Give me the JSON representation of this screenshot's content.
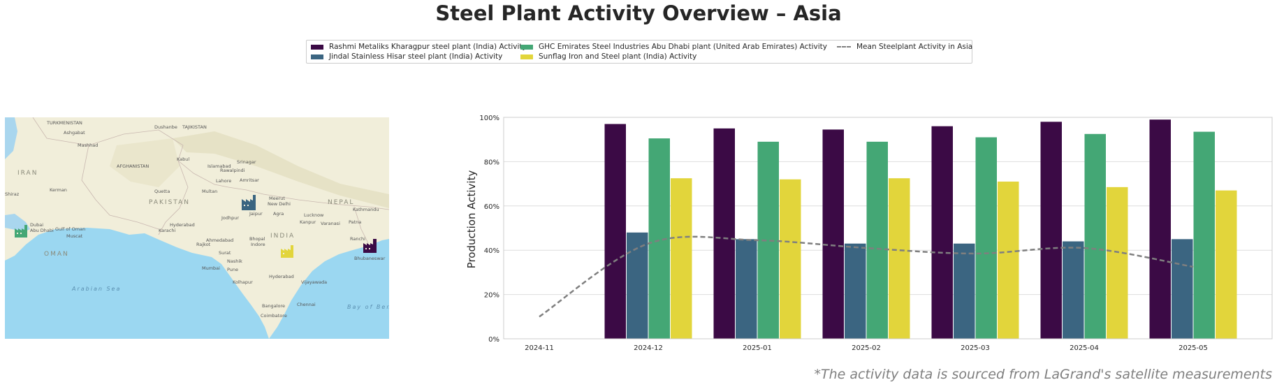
{
  "title": "Steel Plant Activity Overview – Asia",
  "source_note": "*The activity data is sourced from LaGrand's satellite measurements",
  "colors": {
    "series": [
      "#3b0a45",
      "#3b6581",
      "#44a775",
      "#e2d53b"
    ],
    "mean": "#7f7f7f",
    "grid": "#dddddd",
    "axis_text": "#262626"
  },
  "map": {
    "labels": {
      "turkmenistan": "TURKMENISTAN",
      "ashgabat": "Ashgabat",
      "mashhad": "Mashhad",
      "dushanbe": "Dushanbe",
      "tajikistan": "TAJIKISTAN",
      "iran": "IRAN",
      "afghanistan": "AFGHANISTAN",
      "kabul": "Kabul",
      "islamabad": "Islamabad",
      "srinagar": "Srinagar",
      "rawalpindi": "Rawalpindi",
      "lahore": "Lahore",
      "amritsar": "Amritsar",
      "kerman": "Kerman",
      "quetta": "Quetta",
      "multan": "Multan",
      "pakistan": "PAKISTAN",
      "shiraz": "Shiraz",
      "dubai": "Dubai",
      "abu_dhabi": "Abu Dhabi",
      "muscat": "Muscat",
      "oman": "OMAN",
      "gulf_of_oman": "Gulf of Oman",
      "karachi": "Karachi",
      "hyderabad_pk": "Hyderabad",
      "meerut": "Meerut",
      "new_delhi": "New Delhi",
      "jaipur": "Jaipur",
      "agra": "Agra",
      "lucknow": "Lucknow",
      "kanpur": "Kanpur",
      "varanasi": "Varanasi",
      "patna": "Patna",
      "nepal": "NEPAL",
      "kathmandu": "Kathmandu",
      "jodhpur": "Jodhpur",
      "ahmedabad": "Ahmedabad",
      "bhopal": "Bhopal",
      "indore": "Indore",
      "india": "INDIA",
      "rajkot": "Rajkot",
      "surat": "Surat",
      "nashik": "Nashik",
      "mumbai": "Mumbai",
      "pune": "Pune",
      "ranchi": "Ranchi",
      "bhubaneswar": "Bhubaneswar",
      "hyderabad_in": "Hyderabad",
      "vijayawada": "Vijayawada",
      "kolhapur": "Kolhapur",
      "arabian_sea": "Arabian Sea",
      "bangalore": "Bangalore",
      "chennai": "Chennai",
      "coimbatore": "Coimbatore",
      "bay_of_bengal": "Bay of Ben"
    },
    "plant_icons": [
      "factory-icon",
      "factory-icon",
      "factory-icon",
      "factory-icon"
    ]
  },
  "chart_data": {
    "type": "bar",
    "title": "",
    "xlabel": "",
    "ylabel": "Production Activity",
    "ylim": [
      0,
      100
    ],
    "yticks": [
      0,
      20,
      40,
      60,
      80,
      100
    ],
    "ytick_labels": [
      "0%",
      "20%",
      "40%",
      "60%",
      "80%",
      "100%"
    ],
    "categories": [
      "2024-11",
      "2024-12",
      "2025-01",
      "2025-02",
      "2025-03",
      "2025-04",
      "2025-05"
    ],
    "grid": "horizontal",
    "legend_placement": "top-center",
    "series": [
      {
        "name": "Rashmi Metaliks Kharagpur steel plant (India) Activity",
        "values": [
          null,
          97,
          95,
          94.5,
          96,
          98,
          99
        ]
      },
      {
        "name": "Jindal Stainless Hisar steel plant (India) Activity",
        "values": [
          null,
          48,
          45,
          43,
          43,
          44,
          45
        ]
      },
      {
        "name": "GHC Emirates Steel Industries Abu Dhabi plant (United Arab Emirates) Activity",
        "values": [
          null,
          90.5,
          89,
          89,
          91,
          92.5,
          93.5
        ]
      },
      {
        "name": "Sunflag Iron and Steel plant (India) Activity",
        "values": [
          null,
          72.5,
          72,
          72.5,
          71,
          68.5,
          67
        ]
      }
    ],
    "mean_line": {
      "name": "Mean Steelplant Activity in Asia",
      "style": "dashed",
      "values": [
        10,
        43,
        44.5,
        41,
        38.5,
        41,
        32.5
      ]
    }
  }
}
